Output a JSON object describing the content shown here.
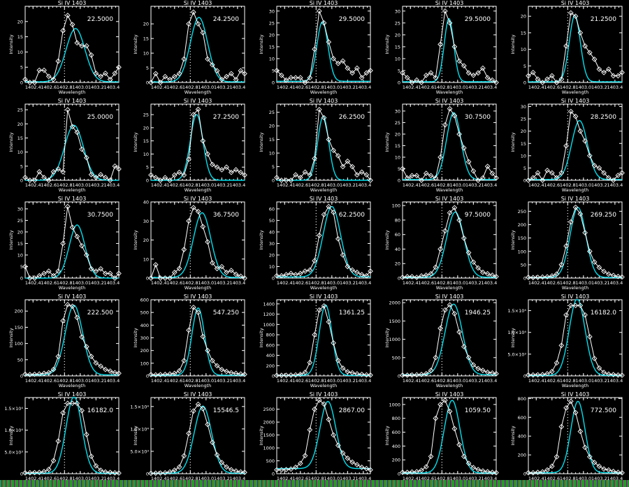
{
  "x": [
    1402.3,
    1402.36,
    1402.42,
    1402.48,
    1402.54,
    1402.6,
    1402.66,
    1402.72,
    1402.78,
    1402.84,
    1402.9,
    1402.96,
    1403.02,
    1403.08,
    1403.14,
    1403.2,
    1403.26,
    1403.32,
    1403.38,
    1403.44,
    1403.5
  ],
  "common": {
    "title": "Si IV 1403",
    "xlabel": "Wavelength",
    "ylabel": "Intensity",
    "xlim": [
      1402.3,
      1403.49
    ],
    "xticks": [
      1402.4,
      1402.6,
      1402.8,
      1403.0,
      1403.2,
      1403.4
    ],
    "xtick_labels": [
      "1402.4",
      "1402.6",
      "1402.8",
      "1403.0",
      "1403.2",
      "1403.4"
    ],
    "reference_line": 1402.8,
    "colors": {
      "background": "#000000",
      "data": "#ffffff",
      "fit": "#00e0ee"
    },
    "marker": "diamond"
  },
  "chart_data": [
    {
      "type": "line",
      "label": "22.5000",
      "ylim": [
        0,
        25
      ],
      "yticks": [
        "0",
        "5",
        "10",
        "15",
        "20"
      ],
      "ytick_values": [
        0,
        5,
        10,
        15,
        20
      ],
      "values": [
        1,
        0,
        0,
        4,
        4,
        2,
        1,
        7,
        17,
        22,
        19,
        13,
        12,
        12,
        9,
        3,
        2,
        3,
        1,
        3,
        5
      ],
      "fit": {
        "peak": 17.5,
        "center": 1402.94,
        "sigma": 0.12,
        "background": 0.2
      }
    },
    {
      "type": "line",
      "label": "24.2500",
      "ylim": [
        0,
        26
      ],
      "yticks": [
        "0",
        "5",
        "10",
        "15",
        "20"
      ],
      "ytick_values": [
        0,
        5,
        10,
        15,
        20
      ],
      "values": [
        0,
        3,
        0,
        2,
        1,
        2,
        3,
        8,
        20,
        24,
        20,
        17,
        8,
        6,
        4,
        1,
        2,
        3,
        1,
        4,
        3
      ],
      "fit": {
        "peak": 22,
        "center": 1402.91,
        "sigma": 0.11,
        "background": 0.2
      }
    },
    {
      "type": "line",
      "label": "29.5000",
      "ylim": [
        0,
        32
      ],
      "yticks": [
        "0",
        "5",
        "10",
        "15",
        "20",
        "25",
        "30"
      ],
      "ytick_values": [
        0,
        5,
        10,
        15,
        20,
        25,
        30
      ],
      "values": [
        5,
        3,
        1,
        2,
        2,
        2,
        0,
        2,
        14,
        30,
        25,
        17,
        10,
        8,
        9,
        6,
        4,
        6,
        2,
        4,
        5
      ],
      "fit": {
        "peak": 25,
        "center": 1402.88,
        "sigma": 0.07,
        "background": 0.5
      }
    },
    {
      "type": "line",
      "label": "29.5000",
      "ylim": [
        0,
        32
      ],
      "yticks": [
        "0",
        "5",
        "10",
        "15",
        "20",
        "25",
        "30"
      ],
      "ytick_values": [
        0,
        5,
        10,
        15,
        20,
        25,
        30
      ],
      "values": [
        4,
        2,
        0,
        1,
        0,
        3,
        4,
        2,
        16,
        30,
        25,
        15,
        9,
        7,
        4,
        3,
        4,
        6,
        2,
        1,
        0
      ],
      "fit": {
        "peak": 26.5,
        "center": 1402.89,
        "sigma": 0.06,
        "background": 0.3
      }
    },
    {
      "type": "line",
      "label": "21.2500",
      "ylim": [
        0,
        23
      ],
      "yticks": [
        "0",
        "5",
        "10",
        "15",
        "20"
      ],
      "ytick_values": [
        0,
        5,
        10,
        15,
        20
      ],
      "values": [
        2,
        3,
        1,
        0,
        1,
        2,
        0,
        1,
        11,
        21,
        20,
        15,
        11,
        9,
        7,
        4,
        3,
        4,
        2,
        2,
        3
      ],
      "fit": {
        "peak": 20,
        "center": 1402.89,
        "sigma": 0.07,
        "background": 0.2
      }
    },
    {
      "type": "line",
      "label": "25.0000",
      "ylim": [
        0,
        27
      ],
      "yticks": [
        "0",
        "5",
        "10",
        "15",
        "20",
        "25"
      ],
      "ytick_values": [
        0,
        5,
        10,
        15,
        20,
        25
      ],
      "values": [
        1,
        0,
        0,
        3,
        1,
        0,
        3,
        4,
        3,
        25,
        19,
        17,
        11,
        8,
        2,
        1,
        2,
        1,
        0,
        5,
        4
      ],
      "fit": {
        "peak": 19.5,
        "center": 1402.92,
        "sigma": 0.12,
        "background": 0
      }
    },
    {
      "type": "line",
      "label": "27.2500",
      "ylim": [
        0,
        29
      ],
      "yticks": [
        "0",
        "5",
        "10",
        "15",
        "20",
        "25"
      ],
      "ytick_values": [
        0,
        5,
        10,
        15,
        20,
        25
      ],
      "values": [
        2,
        1,
        0,
        1,
        0,
        2,
        3,
        2,
        8,
        25,
        27,
        15,
        10,
        6,
        5,
        4,
        5,
        3,
        4,
        3,
        2
      ],
      "fit": {
        "peak": 25,
        "center": 1402.88,
        "sigma": 0.08,
        "background": 0
      }
    },
    {
      "type": "line",
      "label": "26.2500",
      "ylim": [
        0,
        28
      ],
      "yticks": [
        "0",
        "5",
        "10",
        "15",
        "20",
        "25"
      ],
      "ytick_values": [
        0,
        5,
        10,
        15,
        20,
        25
      ],
      "values": [
        1,
        0,
        0,
        0,
        2,
        1,
        3,
        2,
        8,
        26,
        23,
        15,
        11,
        9,
        5,
        7,
        5,
        2,
        3,
        2,
        0
      ],
      "fit": {
        "peak": 23.5,
        "center": 1402.89,
        "sigma": 0.07,
        "background": 0
      }
    },
    {
      "type": "line",
      "label": "30.7500",
      "ylim": [
        0,
        33
      ],
      "yticks": [
        "0",
        "5",
        "10",
        "15",
        "20",
        "25",
        "30"
      ],
      "ytick_values": [
        0,
        5,
        10,
        15,
        20,
        25,
        30
      ],
      "values": [
        5,
        1,
        2,
        2,
        0,
        3,
        2,
        1,
        10,
        24,
        31,
        28,
        20,
        14,
        8,
        4,
        0,
        1,
        6,
        3,
        1
      ],
      "fit": {
        "peak": 29,
        "center": 1402.95,
        "sigma": 0.09,
        "background": 0.3
      }
    },
    {
      "type": "line",
      "label": "28.2500",
      "ylim": [
        0,
        31
      ],
      "yticks": [
        "0",
        "5",
        "10",
        "15",
        "20",
        "25",
        "30"
      ],
      "ytick_values": [
        0,
        5,
        10,
        15,
        20,
        25,
        30
      ],
      "values": [
        0,
        1,
        3,
        0,
        4,
        3,
        1,
        3,
        14,
        28,
        26,
        20,
        16,
        10,
        6,
        5,
        3,
        1,
        0,
        2,
        3
      ],
      "fit": {
        "peak": 24,
        "center": 1402.95,
        "sigma": 0.1,
        "background": 0.3
      }
    },
    {
      "type": "line",
      "label": "30.7500",
      "ylim": [
        0,
        33
      ],
      "yticks": [
        "0",
        "5",
        "10",
        "15",
        "20",
        "25",
        "30"
      ],
      "ytick_values": [
        0,
        5,
        10,
        15,
        20,
        25,
        30
      ],
      "values": [
        5,
        0,
        0,
        1,
        2,
        3,
        1,
        3,
        15,
        31,
        22,
        18,
        14,
        10,
        4,
        3,
        4,
        2,
        2,
        0,
        2
      ],
      "fit": {
        "peak": 23,
        "center": 1402.96,
        "sigma": 0.1,
        "background": 0
      }
    },
    {
      "type": "line",
      "label": "36.7500",
      "ylim": [
        0,
        40
      ],
      "yticks": [
        "0",
        "10",
        "20",
        "30",
        "40"
      ],
      "ytick_values": [
        0,
        10,
        20,
        30,
        40
      ],
      "values": [
        0,
        7,
        0,
        0,
        0,
        3,
        5,
        15,
        30,
        37,
        35,
        27,
        19,
        8,
        5,
        6,
        3,
        4,
        2,
        1,
        0
      ],
      "fit": {
        "peak": 34,
        "center": 1402.95,
        "sigma": 0.11,
        "background": 0.3
      }
    },
    {
      "type": "line",
      "label": "62.2500",
      "ylim": [
        0,
        66
      ],
      "yticks": [
        "0",
        "10",
        "20",
        "30",
        "40",
        "50",
        "60"
      ],
      "ytick_values": [
        0,
        10,
        20,
        30,
        40,
        50,
        60
      ],
      "values": [
        2,
        2,
        3,
        4,
        3,
        4,
        6,
        7,
        15,
        37,
        55,
        62,
        57,
        34,
        20,
        10,
        7,
        5,
        3,
        2,
        6
      ],
      "fit": {
        "peak": 61,
        "center": 1403.0,
        "sigma": 0.11,
        "background": 1
      }
    },
    {
      "type": "line",
      "label": "97.5000",
      "ylim": [
        0,
        105
      ],
      "yticks": [
        "0",
        "20",
        "40",
        "60",
        "80",
        "100"
      ],
      "ytick_values": [
        0,
        20,
        40,
        60,
        80,
        100
      ],
      "values": [
        1,
        2,
        2,
        1,
        3,
        4,
        6,
        15,
        40,
        65,
        90,
        97,
        80,
        55,
        35,
        22,
        14,
        8,
        6,
        4,
        2
      ],
      "fit": {
        "peak": 90,
        "center": 1402.97,
        "sigma": 0.11,
        "background": 1
      }
    },
    {
      "type": "line",
      "label": "269.250",
      "ylim": [
        0,
        285
      ],
      "yticks": [
        "0",
        "50",
        "100",
        "150",
        "200",
        "250"
      ],
      "ytick_values": [
        0,
        50,
        100,
        150,
        200,
        250
      ],
      "values": [
        3,
        2,
        3,
        4,
        5,
        8,
        15,
        50,
        120,
        210,
        265,
        240,
        170,
        100,
        60,
        40,
        25,
        15,
        10,
        6,
        4
      ],
      "fit": {
        "peak": 262,
        "center": 1402.93,
        "sigma": 0.1,
        "background": 2
      }
    },
    {
      "type": "line",
      "label": "222.500",
      "ylim": [
        0,
        235
      ],
      "yticks": [
        "0",
        "50",
        "100",
        "150",
        "200"
      ],
      "ytick_values": [
        0,
        50,
        100,
        150,
        200
      ],
      "values": [
        5,
        4,
        5,
        6,
        8,
        10,
        20,
        60,
        170,
        220,
        215,
        180,
        120,
        90,
        60,
        40,
        30,
        20,
        15,
        10,
        8
      ],
      "fit": {
        "peak": 215,
        "center": 1402.92,
        "sigma": 0.11,
        "background": 3
      }
    },
    {
      "type": "line",
      "label": "547.250",
      "ylim": [
        0,
        600
      ],
      "yticks": [
        "0",
        "100",
        "200",
        "300",
        "400",
        "500",
        "600"
      ],
      "ytick_values": [
        0,
        100,
        200,
        300,
        400,
        500,
        600
      ],
      "values": [
        10,
        8,
        10,
        12,
        15,
        20,
        40,
        120,
        360,
        540,
        500,
        310,
        200,
        120,
        80,
        50,
        35,
        25,
        20,
        15,
        12
      ],
      "fit": {
        "peak": 530,
        "center": 1402.9,
        "sigma": 0.08,
        "background": 5
      }
    },
    {
      "type": "line",
      "label": "1361.25",
      "ylim": [
        0,
        1480
      ],
      "yticks": [
        "0",
        "200",
        "400",
        "600",
        "800",
        "1000",
        "1200",
        "1400"
      ],
      "ytick_values": [
        0,
        200,
        400,
        600,
        800,
        1000,
        1200,
        1400
      ],
      "values": [
        10,
        10,
        12,
        15,
        20,
        30,
        70,
        260,
        800,
        1280,
        1360,
        1050,
        640,
        300,
        150,
        80,
        60,
        40,
        30,
        20,
        15
      ],
      "fit": {
        "peak": 1370,
        "center": 1402.92,
        "sigma": 0.08,
        "background": 10
      }
    },
    {
      "type": "line",
      "label": "1946.25",
      "ylim": [
        0,
        2080
      ],
      "yticks": [
        "0",
        "500",
        "1000",
        "1500",
        "2000"
      ],
      "ytick_values": [
        0,
        500,
        1000,
        1500,
        2000
      ],
      "values": [
        20,
        20,
        25,
        30,
        40,
        60,
        150,
        500,
        1300,
        1800,
        1940,
        1700,
        1200,
        800,
        500,
        300,
        200,
        150,
        100,
        80,
        60
      ],
      "fit": {
        "peak": 1930,
        "center": 1402.95,
        "sigma": 0.11,
        "background": 30
      }
    },
    {
      "type": "line",
      "label": "16182.0",
      "ylim": [
        0,
        17500
      ],
      "yticks": [
        "0",
        "5.0×10³",
        "1.0×10⁴",
        "1.5×10⁴"
      ],
      "ytick_values": [
        0,
        5000,
        10000,
        15000
      ],
      "values": [
        200,
        220,
        250,
        300,
        500,
        1000,
        3000,
        7000,
        14000,
        16182,
        16182,
        16182,
        14000,
        9000,
        4000,
        1800,
        800,
        400,
        300,
        200,
        150
      ],
      "fit": {
        "peak": 17600,
        "center": 1402.92,
        "sigma": 0.1,
        "background": 100
      }
    },
    {
      "type": "line",
      "label": "16182.0",
      "ylim": [
        0,
        17500
      ],
      "yticks": [
        "0",
        "5.0×10³",
        "1.0×10⁴",
        "1.5×10⁴"
      ],
      "ytick_values": [
        0,
        5000,
        10000,
        15000
      ],
      "values": [
        200,
        220,
        250,
        300,
        500,
        1000,
        3000,
        7500,
        14000,
        16182,
        16182,
        16182,
        14500,
        9000,
        4000,
        1800,
        800,
        400,
        300,
        200,
        150
      ],
      "fit": {
        "peak": 17600,
        "center": 1402.92,
        "sigma": 0.1,
        "background": 100
      }
    },
    {
      "type": "line",
      "label": "15546.5",
      "ylim": [
        0,
        17000
      ],
      "yticks": [
        "0",
        "5.0×10³",
        "1.0×10⁴",
        "1.5×10⁴"
      ],
      "ytick_values": [
        0,
        5000,
        10000,
        15000
      ],
      "values": [
        100,
        120,
        150,
        200,
        400,
        800,
        1500,
        4000,
        9000,
        14000,
        15500,
        14500,
        11000,
        7000,
        4200,
        2500,
        1500,
        900,
        600,
        400,
        300
      ],
      "fit": {
        "peak": 15000,
        "center": 1402.96,
        "sigma": 0.11,
        "background": 100
      }
    },
    {
      "type": "line",
      "label": "2867.00",
      "ylim": [
        0,
        2950
      ],
      "yticks": [
        "0",
        "500",
        "1000",
        "1500",
        "2000",
        "2500"
      ],
      "ytick_values": [
        0,
        500,
        1000,
        1500,
        2000,
        2500
      ],
      "values": [
        150,
        150,
        160,
        180,
        250,
        400,
        700,
        1700,
        2500,
        2850,
        2700,
        2100,
        1500,
        1100,
        800,
        600,
        450,
        350,
        250,
        200,
        150
      ],
      "fit": {
        "peak": 2600,
        "center": 1402.95,
        "sigma": 0.1,
        "background": 200
      }
    },
    {
      "type": "line",
      "label": "1059.50",
      "ylim": [
        0,
        1100
      ],
      "yticks": [
        "0",
        "200",
        "400",
        "600",
        "800",
        "1000"
      ],
      "ytick_values": [
        0,
        200,
        400,
        600,
        800,
        1000
      ],
      "values": [
        20,
        20,
        25,
        30,
        50,
        100,
        250,
        800,
        1000,
        1060,
        900,
        650,
        420,
        250,
        150,
        90,
        60,
        40,
        30,
        20,
        15
      ],
      "fit": {
        "peak": 1050,
        "center": 1402.93,
        "sigma": 0.1,
        "background": 10
      }
    },
    {
      "type": "line",
      "label": "772.500",
      "ylim": [
        0,
        810
      ],
      "yticks": [
        "0",
        "200",
        "400",
        "600",
        "800"
      ],
      "ytick_values": [
        0,
        200,
        400,
        600,
        800
      ],
      "values": [
        10,
        10,
        15,
        20,
        40,
        80,
        180,
        500,
        700,
        770,
        650,
        450,
        280,
        180,
        120,
        80,
        50,
        40,
        25,
        15,
        10
      ],
      "fit": {
        "peak": 760,
        "center": 1402.93,
        "sigma": 0.09,
        "background": 10
      }
    }
  ]
}
